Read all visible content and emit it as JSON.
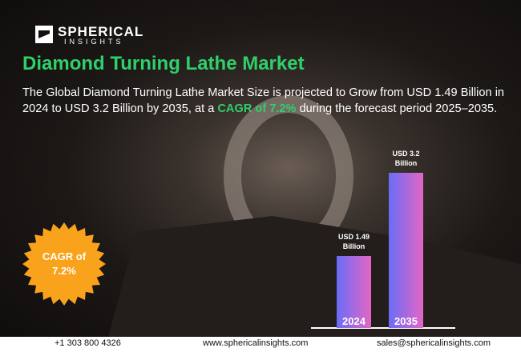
{
  "header": {
    "brand": "SPHERICAL",
    "brand_sub": "INSIGHTS",
    "title": "Diamond Turning Lathe Market"
  },
  "description": {
    "before": "The Global Diamond Turning Lathe Market Size is projected to Grow from USD 1.49 Billion in 2024 to USD 3.2 Billion by 2035, at a ",
    "highlight": "CAGR of 7.2%",
    "after": " during the forecast period 2025–2035."
  },
  "badge": {
    "lines": [
      "CAGR of",
      "7.2%"
    ]
  },
  "chart_data": {
    "type": "bar",
    "categories": [
      "2024",
      "2035"
    ],
    "values": [
      1.49,
      3.2
    ],
    "value_labels": [
      "USD 1.49 Billion",
      "USD 3.2 Billion"
    ],
    "color": [
      "#6a6cf6",
      "#e466c6"
    ]
  },
  "footer": {
    "phone": "+1 303 800 4326",
    "website": "www.sphericalinsights.com",
    "email": "sales@sphericalinsights.com"
  }
}
